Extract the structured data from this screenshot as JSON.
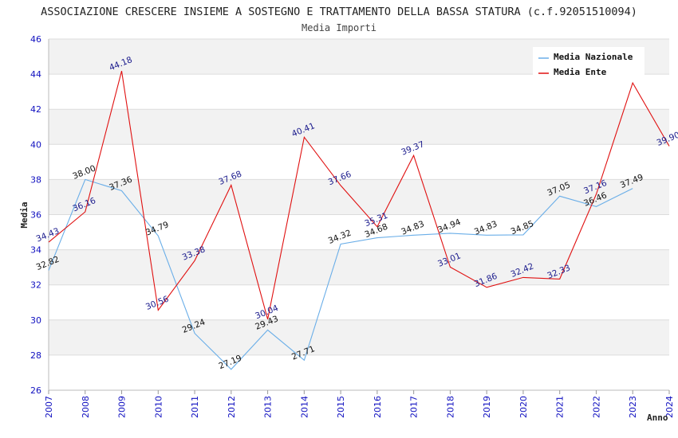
{
  "chart_data": {
    "type": "line",
    "title": "ASSOCIAZIONE CRESCERE INSIEME A SOSTEGNO E TRATTAMENTO DELLA BASSA STATURA (c.f.92051510094)",
    "subtitle": "Media Importi",
    "xlabel": "Anno",
    "ylabel": "Media",
    "ylim": [
      26,
      46
    ],
    "yticks": [
      "26",
      "28",
      "30",
      "32",
      "34",
      "36",
      "38",
      "40",
      "42",
      "44",
      "46"
    ],
    "x": [
      "2007",
      "2008",
      "2009",
      "2010",
      "2011",
      "2012",
      "2013",
      "2014",
      "2015",
      "2016",
      "2017",
      "2018",
      "2019",
      "2020",
      "2021",
      "2022",
      "2023",
      "2024"
    ],
    "legend_position": "top-right",
    "series": [
      {
        "name": "Media Nazionale",
        "color": "#6aaee8",
        "values": [
          32.82,
          38.0,
          37.36,
          34.79,
          29.24,
          27.19,
          29.43,
          27.71,
          34.32,
          34.68,
          34.83,
          34.94,
          34.83,
          34.85,
          37.05,
          36.46,
          37.49,
          null
        ],
        "labels": [
          "32.82",
          "38.00",
          "37.36",
          "34.79",
          "29.24",
          "27.19",
          "29.43",
          "27.71",
          "34.32",
          "34.68",
          "34.83",
          "34.94",
          "34.83",
          "34.85",
          "37.05",
          "36.46",
          "37.49",
          null
        ]
      },
      {
        "name": "Media Ente",
        "color": "#e01010",
        "values": [
          34.43,
          36.16,
          44.18,
          30.56,
          33.38,
          37.68,
          30.04,
          40.41,
          37.66,
          35.31,
          39.37,
          33.01,
          31.86,
          32.42,
          32.33,
          37.16,
          43.5,
          39.9
        ],
        "labels": [
          "34.43",
          "36.16",
          "44.18",
          "30.56",
          "33.38",
          "37.68",
          "30.04",
          "40.41",
          "37.66",
          "35.31",
          "39.37",
          "33.01",
          "31.86",
          "32.42",
          "32.33",
          "37.16",
          null,
          "39.90"
        ]
      }
    ]
  }
}
